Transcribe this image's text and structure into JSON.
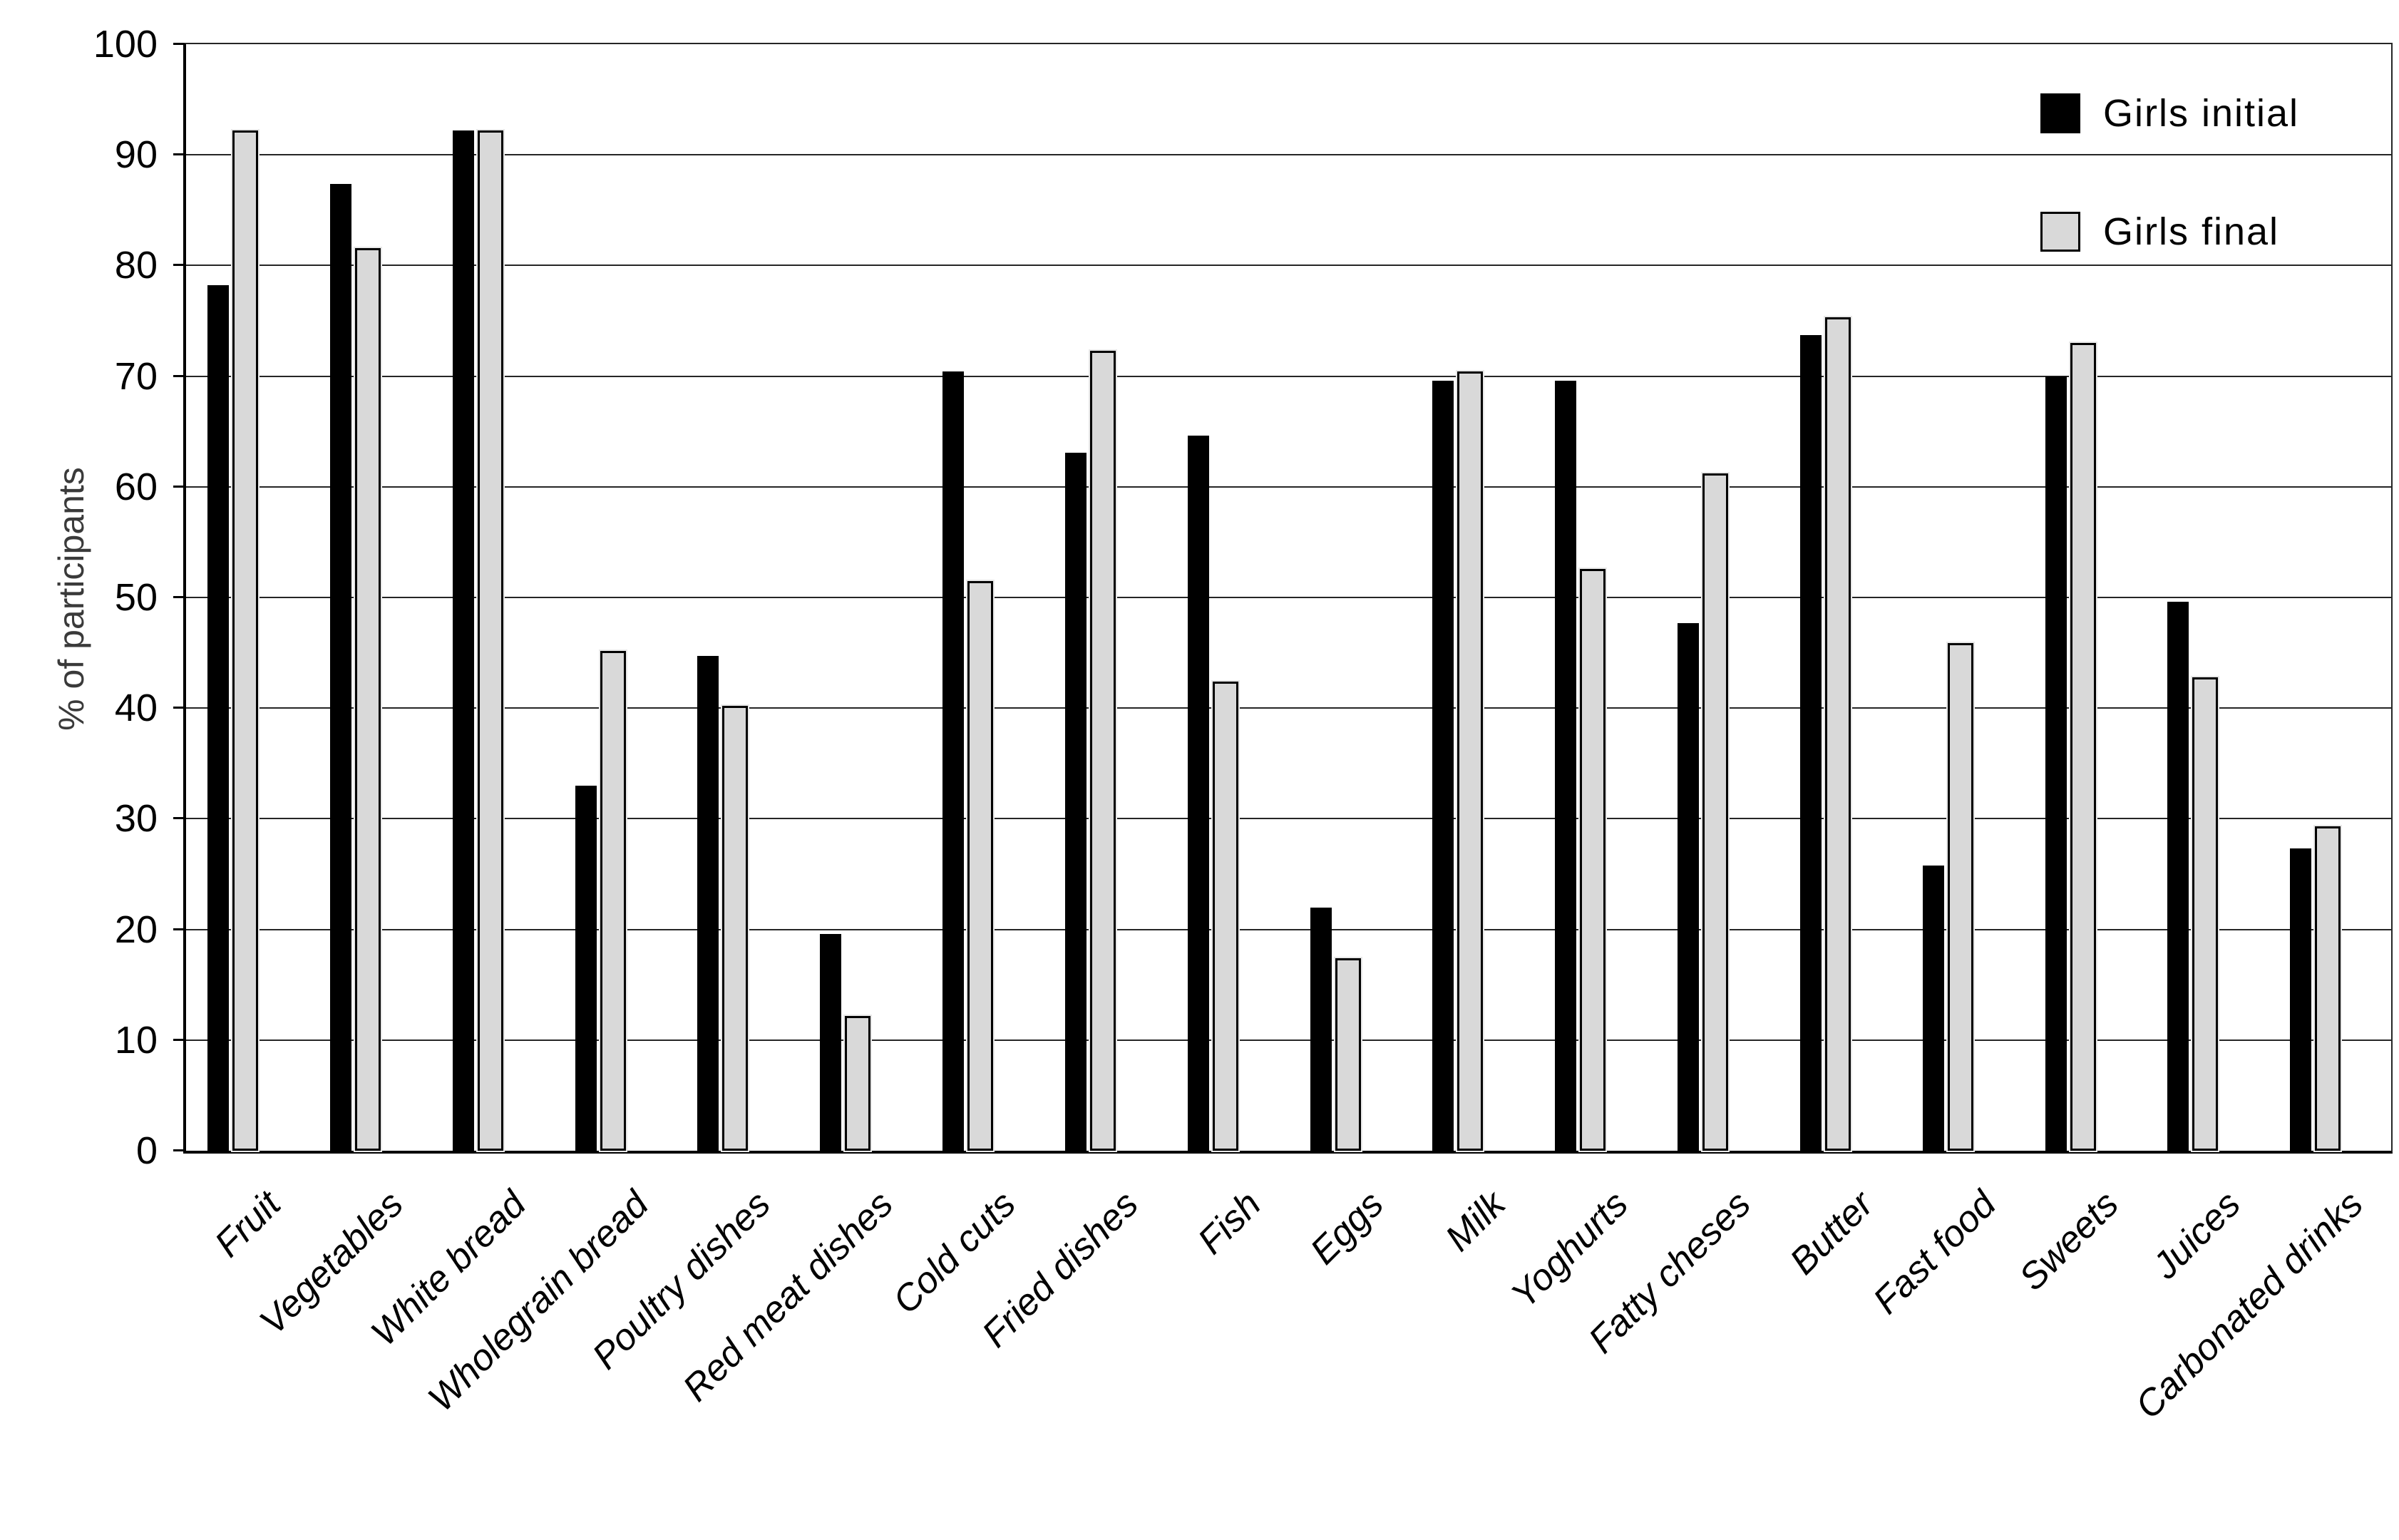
{
  "chart_data": {
    "type": "bar",
    "title": "",
    "categories": [
      "Fruit",
      "Vegetables",
      "White bread",
      "Wholegrain bread",
      "Poultry dishes",
      "Red meat dishes",
      "Cold cuts",
      "Fried dishes",
      "Fish",
      "Eggs",
      "Milk",
      "Yoghurts",
      "Fatty cheses",
      "Butter",
      "Fast food",
      "Sweets",
      "Juices",
      "Carbonated drinks"
    ],
    "series": [
      {
        "name": "Girls initial",
        "color": "#000000",
        "values": [
          78.2,
          87.4,
          92.2,
          33.0,
          44.7,
          19.6,
          70.4,
          63.1,
          64.6,
          22.0,
          69.6,
          69.6,
          47.7,
          73.7,
          25.8,
          70.0,
          49.6,
          27.3
        ]
      },
      {
        "name": "Girls final",
        "color": "#d9d9d9",
        "border_color": "#000000",
        "values": [
          92.2,
          81.6,
          92.2,
          45.2,
          40.2,
          12.2,
          51.5,
          72.3,
          42.4,
          17.4,
          70.4,
          52.6,
          61.2,
          75.3,
          45.9,
          73.0,
          42.8,
          29.3
        ]
      }
    ],
    "xlabel": "",
    "ylabel": "% of participants",
    "ylim": [
      0,
      100
    ],
    "ytick_step": 10,
    "yticks": [
      0,
      10,
      20,
      30,
      40,
      50,
      60,
      70,
      80,
      90,
      100
    ],
    "grid": "horizontal",
    "legend_position": "top-right",
    "axis_color": "#000000",
    "gridline_color": "#262626"
  }
}
